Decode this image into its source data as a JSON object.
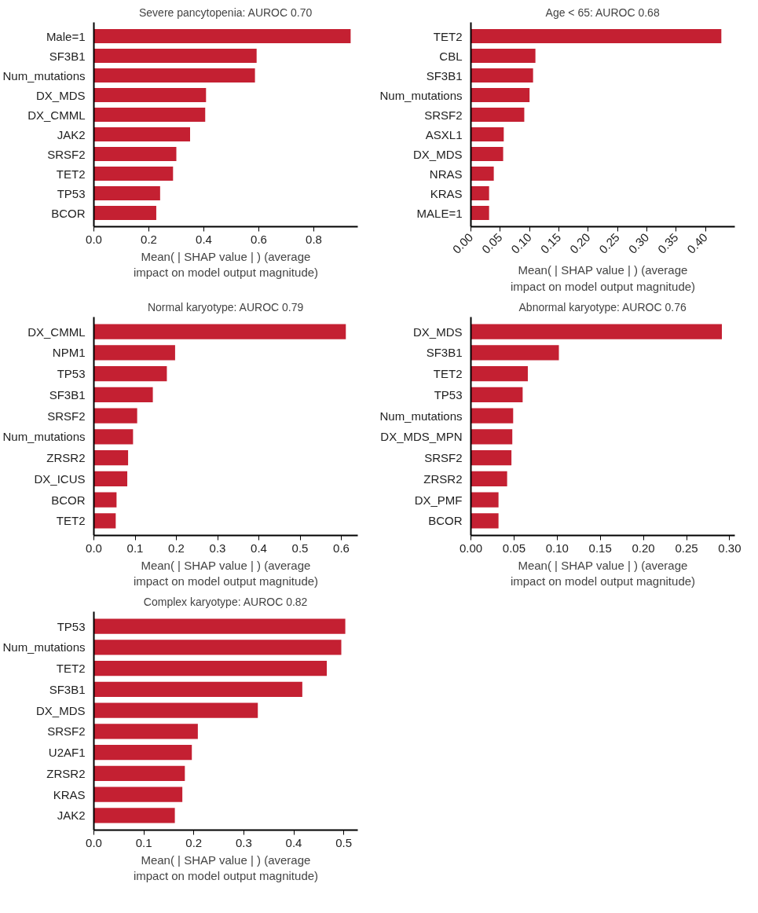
{
  "chart_data": [
    {
      "type": "bar",
      "orientation": "horizontal",
      "title": "Severe pancytopenia: AUROC 0.70",
      "xlabel": "Mean( | SHAP value | ) (average\nimpact on model output magnitude)",
      "color": "#c42032",
      "categories": [
        "Male=1",
        "SF3B1",
        "Num_mutations",
        "DX_MDS",
        "DX_CMML",
        "JAK2",
        "SRSF2",
        "TET2",
        "TP53",
        "BCOR"
      ],
      "values": [
        0.934,
        0.592,
        0.586,
        0.408,
        0.405,
        0.35,
        0.3,
        0.288,
        0.241,
        0.227
      ],
      "xlim": [
        0,
        0.96
      ],
      "xticks": [
        {
          "value": 0,
          "label": "0.0"
        },
        {
          "value": 0.2,
          "label": "0.2"
        },
        {
          "value": 0.4,
          "label": "0.4"
        },
        {
          "value": 0.6,
          "label": "0.6"
        },
        {
          "value": 0.8,
          "label": "0.8"
        }
      ]
    },
    {
      "type": "bar",
      "orientation": "horizontal",
      "title": "Age < 65: AUROC 0.68",
      "xlabel": "Mean( | SHAP value | ) (average\nimpact on model output magnitude)",
      "color": "#c42032",
      "categories": [
        "TET2",
        "CBL",
        "SF3B1",
        "Num_mutations",
        "SRSF2",
        "ASXL1",
        "DX_MDS",
        "NRAS",
        "KRAS",
        "MALE=1"
      ],
      "values": [
        0.427,
        0.11,
        0.106,
        0.1,
        0.091,
        0.056,
        0.055,
        0.039,
        0.031,
        0.031
      ],
      "xlim": [
        0,
        0.45
      ],
      "xticks": [
        {
          "value": 0,
          "label": "0.00"
        },
        {
          "value": 0.05,
          "label": "0.05"
        },
        {
          "value": 0.1,
          "label": "0.10"
        },
        {
          "value": 0.15,
          "label": "0.15"
        },
        {
          "value": 0.2,
          "label": "0.20"
        },
        {
          "value": 0.25,
          "label": "0.25"
        },
        {
          "value": 0.3,
          "label": "0.30"
        },
        {
          "value": 0.35,
          "label": "0.35"
        },
        {
          "value": 0.4,
          "label": "0.40"
        }
      ]
    },
    {
      "type": "bar",
      "orientation": "horizontal",
      "title": "Normal karyotype: AUROC 0.79",
      "xlabel": "Mean( | SHAP value | ) (average\nimpact on model output magnitude)",
      "color": "#c42032",
      "categories": [
        "DX_CMML",
        "NPM1",
        "TP53",
        "SF3B1",
        "SRSF2",
        "Num_mutations",
        "ZRSR2",
        "DX_ICUS",
        "BCOR",
        "TET2"
      ],
      "values": [
        0.611,
        0.197,
        0.177,
        0.143,
        0.105,
        0.095,
        0.083,
        0.081,
        0.055,
        0.053
      ],
      "xlim": [
        0,
        0.64
      ],
      "xticks": [
        {
          "value": 0,
          "label": "0.0"
        },
        {
          "value": 0.1,
          "label": "0.1"
        },
        {
          "value": 0.2,
          "label": "0.2"
        },
        {
          "value": 0.3,
          "label": "0.3"
        },
        {
          "value": 0.4,
          "label": "0.4"
        },
        {
          "value": 0.5,
          "label": "0.5"
        },
        {
          "value": 0.6,
          "label": "0.6"
        }
      ]
    },
    {
      "type": "bar",
      "orientation": "horizontal",
      "title": "Abnormal karyotype: AUROC 0.76",
      "xlabel": "Mean( | SHAP value | ) (average\nimpact on model output magnitude)",
      "color": "#c42032",
      "categories": [
        "DX_MDS",
        "SF3B1",
        "TET2",
        "TP53",
        "Num_mutations",
        "DX_MDS_MPN",
        "SRSF2",
        "ZRSR2",
        "DX_PMF",
        "BCOR"
      ],
      "values": [
        0.291,
        0.102,
        0.066,
        0.06,
        0.049,
        0.048,
        0.047,
        0.042,
        0.032,
        0.032
      ],
      "xlim": [
        0,
        0.306
      ],
      "xticks": [
        {
          "value": 0,
          "label": "0.00"
        },
        {
          "value": 0.05,
          "label": "0.05"
        },
        {
          "value": 0.1,
          "label": "0.10"
        },
        {
          "value": 0.15,
          "label": "0.15"
        },
        {
          "value": 0.2,
          "label": "0.20"
        },
        {
          "value": 0.25,
          "label": "0.25"
        },
        {
          "value": 0.3,
          "label": "0.30"
        }
      ]
    },
    {
      "type": "bar",
      "orientation": "horizontal",
      "title": "Complex karyotype: AUROC 0.82",
      "xlabel": "Mean( | SHAP value | ) (average\nimpact on model output magnitude)",
      "color": "#c42032",
      "categories": [
        "TP53",
        "Num_mutations",
        "TET2",
        "SF3B1",
        "DX_MDS",
        "SRSF2",
        "U2AF1",
        "ZRSR2",
        "KRAS",
        "JAK2"
      ],
      "values": [
        0.503,
        0.495,
        0.466,
        0.417,
        0.328,
        0.208,
        0.196,
        0.182,
        0.177,
        0.162
      ],
      "xlim": [
        0,
        0.528
      ],
      "xticks": [
        {
          "value": 0,
          "label": "0.0"
        },
        {
          "value": 0.1,
          "label": "0.1"
        },
        {
          "value": 0.2,
          "label": "0.2"
        },
        {
          "value": 0.3,
          "label": "0.3"
        },
        {
          "value": 0.4,
          "label": "0.4"
        },
        {
          "value": 0.5,
          "label": "0.5"
        }
      ]
    }
  ]
}
